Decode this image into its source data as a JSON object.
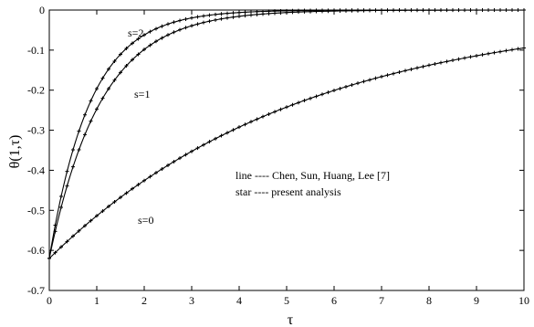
{
  "chart_data": {
    "type": "line",
    "xlabel": "τ",
    "ylabel": "θ(1,τ)",
    "xlim": [
      0,
      10
    ],
    "ylim": [
      -0.7,
      0
    ],
    "xticks": [
      "0",
      "1",
      "2",
      "3",
      "4",
      "5",
      "6",
      "7",
      "8",
      "9",
      "10"
    ],
    "yticks": [
      "0",
      "-0.1",
      "-0.2",
      "-0.3",
      "-0.4",
      "-0.5",
      "-0.6",
      "-0.7"
    ],
    "grid": false,
    "series": [
      {
        "name": "s=2",
        "theta0": -0.62,
        "rate": 1.15
      },
      {
        "name": "s=1",
        "theta0": -0.62,
        "rate": 0.92
      },
      {
        "name": "s=0",
        "theta0": -0.62,
        "rate": 0.188
      }
    ],
    "marker_step": 0.125,
    "annotations": [
      "s=2",
      "s=1",
      "s=0"
    ],
    "legend": {
      "entries": [
        "line ---- Chen, Sun, Huang, Lee [7]",
        "star ---- present analysis"
      ]
    }
  }
}
